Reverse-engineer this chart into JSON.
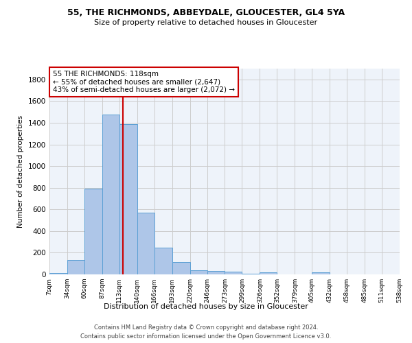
{
  "title1": "55, THE RICHMONDS, ABBEYDALE, GLOUCESTER, GL4 5YA",
  "title2": "Size of property relative to detached houses in Gloucester",
  "xlabel": "Distribution of detached houses by size in Gloucester",
  "ylabel": "Number of detached properties",
  "bar_edges": [
    7,
    34,
    60,
    87,
    113,
    140,
    166,
    193,
    220,
    246,
    273,
    299,
    326,
    352,
    379,
    405,
    432,
    458,
    485,
    511,
    538
  ],
  "bar_heights": [
    15,
    130,
    790,
    1475,
    1390,
    570,
    250,
    115,
    35,
    30,
    28,
    5,
    18,
    0,
    0,
    20,
    0,
    0,
    0,
    0
  ],
  "bar_color": "#aec6e8",
  "bar_edge_color": "#5a9fd4",
  "property_sqm": 118,
  "annotation_line1": "55 THE RICHMONDS: 118sqm",
  "annotation_line2": "← 55% of detached houses are smaller (2,647)",
  "annotation_line3": "43% of semi-detached houses are larger (2,072) →",
  "vline_color": "#cc0000",
  "annotation_box_edge": "#cc0000",
  "annotation_box_face": "#ffffff",
  "ylim": [
    0,
    1900
  ],
  "tick_labels": [
    "7sqm",
    "34sqm",
    "60sqm",
    "87sqm",
    "113sqm",
    "140sqm",
    "166sqm",
    "193sqm",
    "220sqm",
    "246sqm",
    "273sqm",
    "299sqm",
    "326sqm",
    "352sqm",
    "379sqm",
    "405sqm",
    "432sqm",
    "458sqm",
    "485sqm",
    "511sqm",
    "538sqm"
  ],
  "grid_color": "#cccccc",
  "bg_color": "#eef3fa",
  "footer1": "Contains HM Land Registry data © Crown copyright and database right 2024.",
  "footer2": "Contains public sector information licensed under the Open Government Licence v3.0."
}
